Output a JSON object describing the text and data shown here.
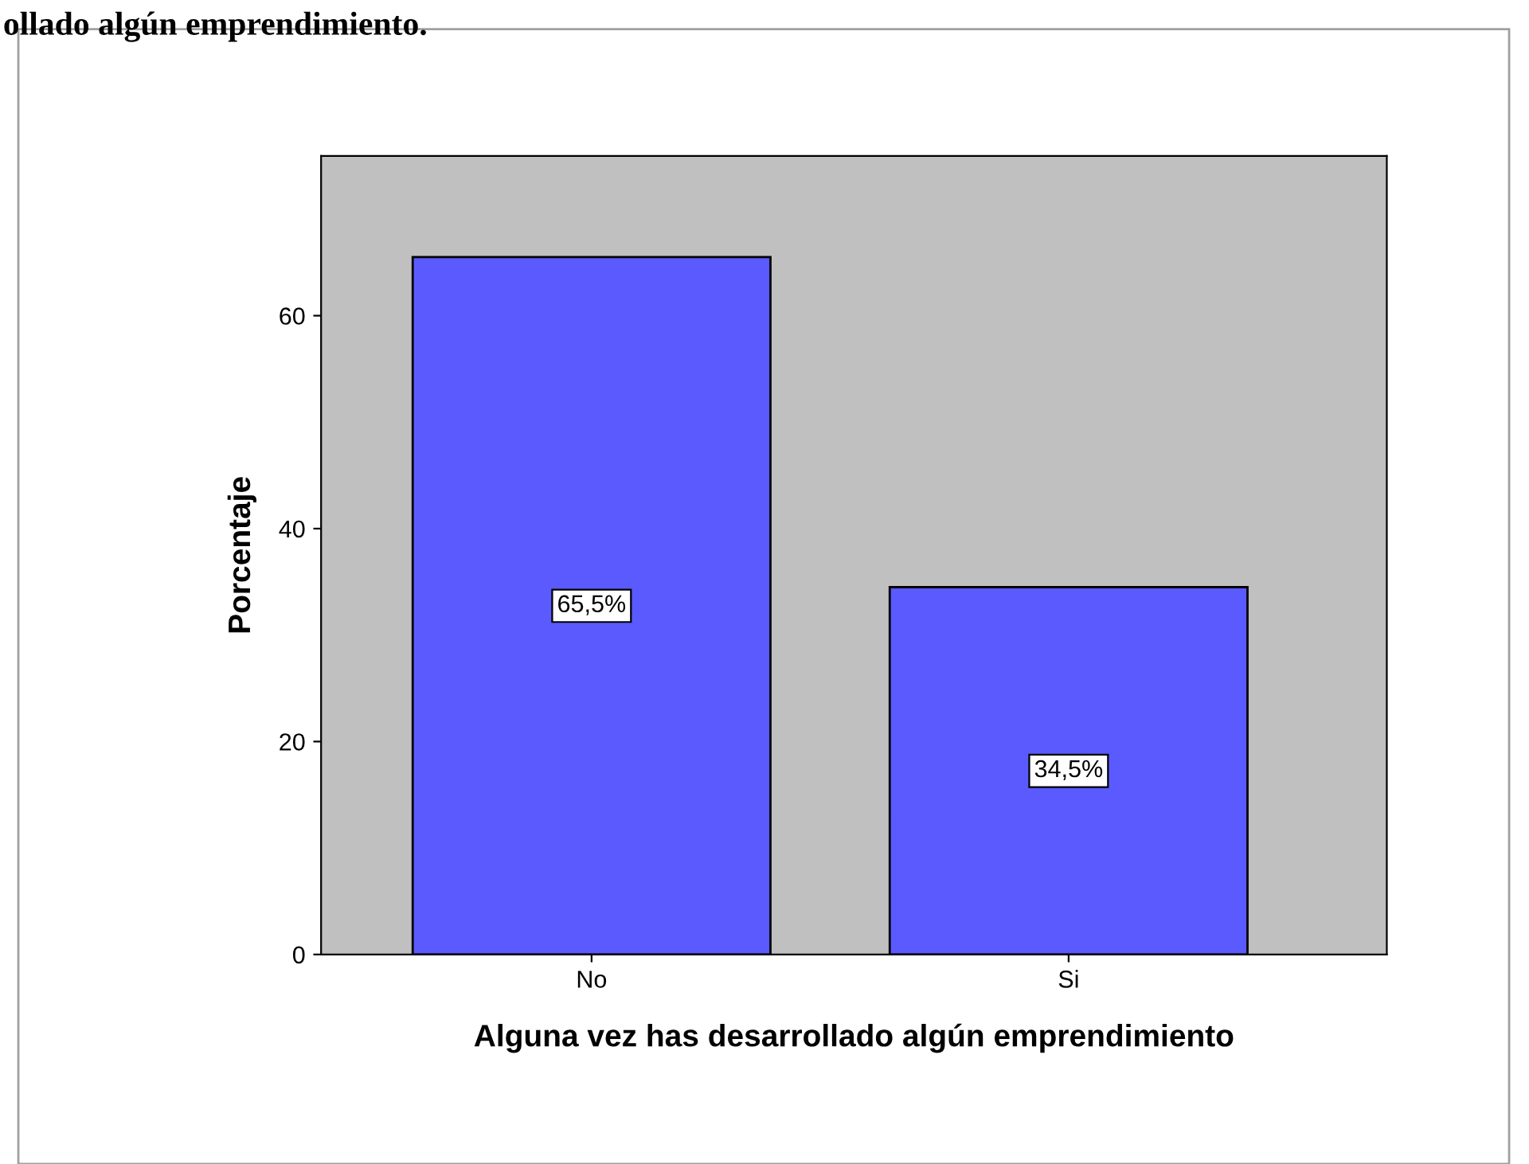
{
  "chart_data": {
    "type": "bar",
    "title": "ollado algún emprendimiento.",
    "xlabel": "Alguna vez has desarrollado algún emprendimiento",
    "ylabel": "Porcentaje",
    "categories": [
      "No",
      "Si"
    ],
    "values": [
      65.5,
      34.5
    ],
    "color": "#5a5aff",
    "value_labels": [
      "65,5%",
      "34,5%"
    ],
    "ylim": [
      0,
      75
    ],
    "yticks": [
      0,
      20,
      40,
      60
    ],
    "grid": false
  }
}
